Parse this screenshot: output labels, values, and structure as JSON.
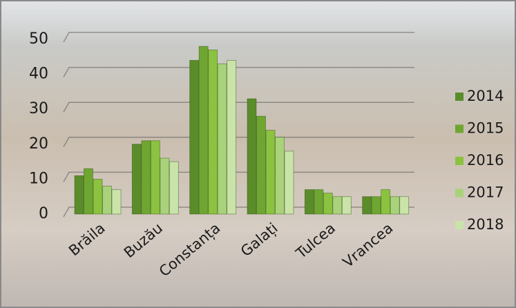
{
  "chart_data": {
    "type": "bar",
    "categories": [
      "Brăila",
      "Buzău",
      "Constanța",
      "Galați",
      "Tulcea",
      "Vrancea"
    ],
    "series": [
      {
        "name": "2014",
        "color": "#5b8c2a",
        "values": [
          11,
          20,
          44,
          33,
          7,
          5
        ]
      },
      {
        "name": "2015",
        "color": "#6fa632",
        "values": [
          13,
          21,
          48,
          28,
          7,
          5
        ]
      },
      {
        "name": "2016",
        "color": "#8bc23f",
        "values": [
          10,
          21,
          47,
          24,
          6,
          7
        ]
      },
      {
        "name": "2017",
        "color": "#a9d27b",
        "values": [
          8,
          16,
          43,
          22,
          5,
          5
        ]
      },
      {
        "name": "2018",
        "color": "#c9e3a9",
        "values": [
          7,
          15,
          44,
          18,
          5,
          5
        ]
      }
    ],
    "ylim": [
      0,
      50
    ],
    "yticks": [
      0,
      10,
      20,
      30,
      40,
      50
    ],
    "grid": true,
    "legend": "right"
  }
}
